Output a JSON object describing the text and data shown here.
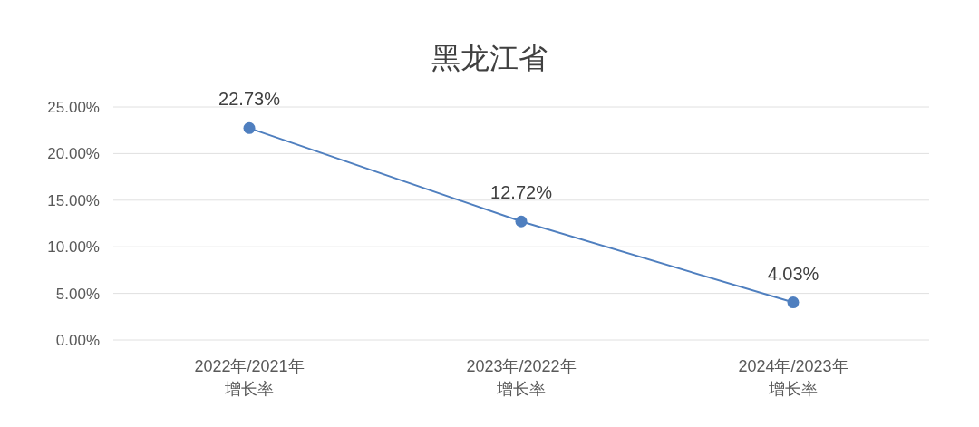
{
  "chart_data": {
    "type": "line",
    "title": "黑龙江省",
    "categories": [
      "2022年/2021年增长率",
      "2023年/2022年增长率",
      "2024年/2023年增长率"
    ],
    "values": [
      22.73,
      12.72,
      4.03
    ],
    "value_labels": [
      "22.73%",
      "12.72%",
      "4.03%"
    ],
    "color": "#4f7fbf",
    "ylim": [
      0,
      25
    ],
    "yticks": [
      {
        "value": 0,
        "label": "0.00%"
      },
      {
        "value": 5,
        "label": "5.00%"
      },
      {
        "value": 10,
        "label": "10.00%"
      },
      {
        "value": 15,
        "label": "15.00%"
      },
      {
        "value": 20,
        "label": "20.00%"
      },
      {
        "value": 25,
        "label": "25.00%"
      }
    ],
    "grid": "y",
    "marker": "circle",
    "line_style": "solid"
  }
}
